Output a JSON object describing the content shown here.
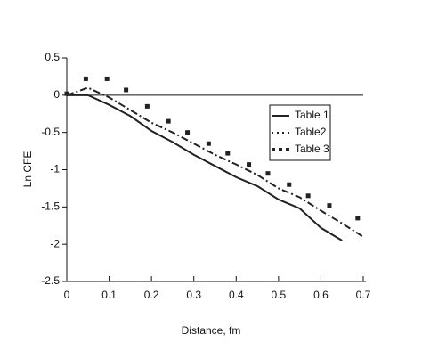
{
  "chart_data": {
    "type": "line",
    "x_label": "Distance, fm",
    "y_label": "Ln CFE",
    "xlim": [
      0,
      0.7
    ],
    "xticks": [
      0,
      0.1,
      0.2,
      0.3,
      0.4,
      0.5,
      0.6,
      0.7
    ],
    "ylim": [
      -2.5,
      0.5
    ],
    "yticks": [
      0.5,
      0,
      -0.5,
      -1,
      -1.5,
      -2,
      -2.5
    ],
    "hline": 0,
    "legend_position": "center right",
    "series": [
      {
        "name": "Table 1",
        "color": "#222222",
        "style": "solid",
        "x": [
          0,
          0.05,
          0.1,
          0.15,
          0.2,
          0.25,
          0.3,
          0.35,
          0.4,
          0.45,
          0.5,
          0.55,
          0.6,
          0.65
        ],
        "values": [
          0,
          0,
          -0.13,
          -0.28,
          -0.48,
          -0.63,
          -0.8,
          -0.95,
          -1.1,
          -1.22,
          -1.4,
          -1.52,
          -1.78,
          -1.95
        ]
      },
      {
        "name": "Table2",
        "color": "#222222",
        "style": "dashdot",
        "x": [
          0,
          0.05,
          0.1,
          0.15,
          0.2,
          0.25,
          0.3,
          0.35,
          0.4,
          0.45,
          0.5,
          0.55,
          0.6,
          0.65,
          0.7
        ],
        "values": [
          0,
          0.1,
          -0.03,
          -0.2,
          -0.37,
          -0.5,
          -0.65,
          -0.8,
          -0.93,
          -1.07,
          -1.25,
          -1.37,
          -1.55,
          -1.72,
          -1.9
        ]
      },
      {
        "name": "Table 3",
        "color": "#222222",
        "style": "dots",
        "x": [
          0,
          0.045,
          0.095,
          0.14,
          0.19,
          0.24,
          0.285,
          0.335,
          0.38,
          0.43,
          0.475,
          0.525,
          0.57,
          0.62,
          0.687
        ],
        "values": [
          0.02,
          0.22,
          0.22,
          0.07,
          -0.15,
          -0.35,
          -0.5,
          -0.65,
          -0.78,
          -0.93,
          -1.05,
          -1.2,
          -1.35,
          -1.48,
          -1.65
        ]
      }
    ]
  }
}
